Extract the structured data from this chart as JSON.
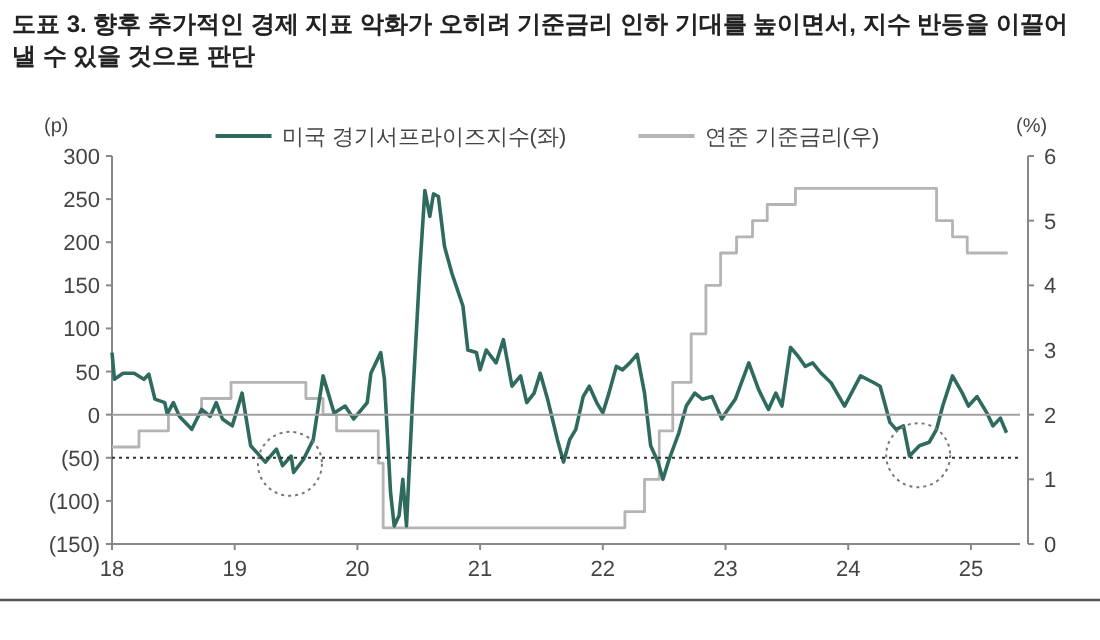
{
  "chart_data": {
    "type": "line",
    "title": "도표 3. 향후 추가적인 경제 지표 악화가 오히려 기준금리 인하 기대를 높이면서, 지수 반등을 이끌어 낼 수 있을 것으로 판단",
    "ylabel": "(p)",
    "y2label": "(%)",
    "legend": "top",
    "xlim": [
      2018,
      2025.4
    ],
    "xticks": [
      {
        "value": 2018,
        "label": "18"
      },
      {
        "value": 2019,
        "label": "19"
      },
      {
        "value": 2020,
        "label": "20"
      },
      {
        "value": 2021,
        "label": "21"
      },
      {
        "value": 2022,
        "label": "22"
      },
      {
        "value": 2023,
        "label": "23"
      },
      {
        "value": 2024,
        "label": "24"
      },
      {
        "value": 2025,
        "label": "25"
      }
    ],
    "ylim": [
      -150,
      300
    ],
    "yticks": [
      {
        "value": -150,
        "label": "(150)"
      },
      {
        "value": -100,
        "label": "(100)"
      },
      {
        "value": -50,
        "label": "(50)"
      },
      0,
      50,
      100,
      150,
      200,
      250,
      300
    ],
    "y2lim": [
      0,
      6
    ],
    "y2ticks": [
      0,
      1,
      2,
      3,
      4,
      5,
      6
    ],
    "ref_lines": [
      {
        "axis": "y",
        "value": 0,
        "color": "#a0a0a0",
        "line_style": "solid"
      },
      {
        "axis": "y",
        "value": -50,
        "color": "#333333",
        "line_style": "dotted"
      }
    ],
    "series": [
      {
        "name": "미국 경기서프라이즈지수(좌)",
        "type": "line",
        "color": "#2e6b5e",
        "x": [
          2018.0,
          2018.02,
          2018.09,
          2018.18,
          2018.26,
          2018.3,
          2018.35,
          2018.43,
          2018.45,
          2018.5,
          2018.55,
          2018.65,
          2018.73,
          2018.8,
          2018.85,
          2018.9,
          2018.98,
          2019.06,
          2019.13,
          2019.25,
          2019.34,
          2019.39,
          2019.46,
          2019.48,
          2019.56,
          2019.64,
          2019.72,
          2019.81,
          2019.9,
          2019.97,
          2020.08,
          2020.11,
          2020.19,
          2020.22,
          2020.27,
          2020.3,
          2020.34,
          2020.37,
          2020.4,
          2020.45,
          2020.51,
          2020.55,
          2020.59,
          2020.62,
          2020.66,
          2020.71,
          2020.77,
          2020.86,
          2020.9,
          2020.97,
          2021.0,
          2021.05,
          2021.13,
          2021.19,
          2021.26,
          2021.33,
          2021.38,
          2021.44,
          2021.49,
          2021.55,
          2021.63,
          2021.68,
          2021.73,
          2021.78,
          2021.84,
          2021.89,
          2021.95,
          2022.0,
          2022.05,
          2022.11,
          2022.16,
          2022.22,
          2022.28,
          2022.34,
          2022.39,
          2022.45,
          2022.49,
          2022.54,
          2022.62,
          2022.68,
          2022.75,
          2022.81,
          2022.89,
          2022.97,
          2023.0,
          2023.08,
          2023.19,
          2023.27,
          2023.35,
          2023.41,
          2023.46,
          2023.53,
          2023.59,
          2023.65,
          2023.71,
          2023.78,
          2023.86,
          2023.97,
          2024.1,
          2024.21,
          2024.26,
          2024.34,
          2024.39,
          2024.45,
          2024.5,
          2024.58,
          2024.66,
          2024.72,
          2024.77,
          2024.85,
          2024.93,
          2024.98,
          2025.05,
          2025.13,
          2025.18,
          2025.24,
          2025.29
        ],
        "values": [
          72,
          41,
          48,
          48,
          41,
          47,
          18,
          14,
          1,
          14,
          -2,
          -17,
          6,
          -2,
          14,
          -5,
          -13,
          25,
          -36,
          -55,
          -40,
          -59,
          -48,
          -67,
          -52,
          -29,
          45,
          2,
          10,
          -5,
          14,
          48,
          72,
          41,
          -90,
          -129,
          -117,
          -75,
          -129,
          18,
          172,
          260,
          230,
          256,
          253,
          195,
          164,
          126,
          75,
          72,
          52,
          75,
          60,
          87,
          33,
          45,
          14,
          25,
          48,
          18,
          -29,
          -55,
          -29,
          -17,
          21,
          33,
          14,
          2,
          25,
          56,
          52,
          60,
          70,
          25,
          -36,
          -55,
          -75,
          -52,
          -21,
          10,
          25,
          18,
          21,
          -5,
          2,
          18,
          60,
          29,
          6,
          25,
          10,
          78,
          68,
          56,
          60,
          48,
          37,
          10,
          45,
          37,
          33,
          -9,
          -17,
          -13,
          -48,
          -36,
          -32,
          -17,
          10,
          45,
          25,
          10,
          21,
          2,
          -13,
          -4,
          -21
        ]
      },
      {
        "name": "연준 기준금리(우)",
        "type": "step",
        "axis": "y2",
        "color": "#b4b4b4",
        "x": [
          2018.0,
          2018.22,
          2018.46,
          2018.73,
          2018.97,
          2019.58,
          2019.72,
          2019.83,
          2020.17,
          2020.21,
          2022.18,
          2022.34,
          2022.46,
          2022.57,
          2022.72,
          2022.84,
          2022.96,
          2023.09,
          2023.22,
          2023.34,
          2023.57,
          2024.72,
          2024.85,
          2024.97,
          2025.3
        ],
        "values": [
          1.5,
          1.75,
          2.0,
          2.25,
          2.5,
          2.25,
          2.0,
          1.75,
          1.25,
          0.25,
          0.5,
          1.0,
          1.75,
          2.5,
          3.25,
          4.0,
          4.5,
          4.75,
          5.0,
          5.25,
          5.5,
          5.0,
          4.75,
          4.5,
          4.5
        ]
      }
    ]
  }
}
